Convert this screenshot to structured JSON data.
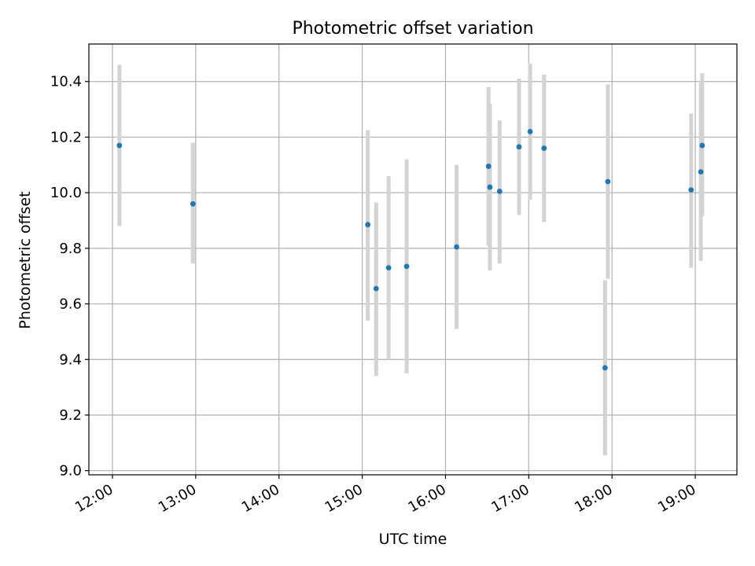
{
  "chart_data": {
    "type": "scatter",
    "title": "Photometric offset variation",
    "xlabel": "UTC time",
    "ylabel": "Photometric offset",
    "xlim": [
      "11:43",
      "19:30"
    ],
    "ylim": [
      8.985,
      10.535
    ],
    "x_ticks": [
      "12:00",
      "13:00",
      "14:00",
      "15:00",
      "16:00",
      "17:00",
      "18:00",
      "19:00"
    ],
    "y_ticks": [
      "9.0",
      "9.2",
      "9.4",
      "9.6",
      "9.8",
      "10.0",
      "10.2",
      "10.4"
    ],
    "grid": true,
    "colors": {
      "point": "#1f77b4",
      "errorbar": "#d3d3d3",
      "grid": "#b0b0b0"
    },
    "points": [
      {
        "x": "12:05",
        "y": 10.17,
        "ylow": 9.88,
        "yhigh": 10.46
      },
      {
        "x": "12:58",
        "y": 9.96,
        "ylow": 9.745,
        "yhigh": 10.18
      },
      {
        "x": "15:04",
        "y": 9.885,
        "ylow": 9.54,
        "yhigh": 10.225
      },
      {
        "x": "15:10",
        "y": 9.655,
        "ylow": 9.34,
        "yhigh": 9.965
      },
      {
        "x": "15:19",
        "y": 9.73,
        "ylow": 9.4,
        "yhigh": 10.06
      },
      {
        "x": "15:32",
        "y": 9.735,
        "ylow": 9.35,
        "yhigh": 10.12
      },
      {
        "x": "16:08",
        "y": 9.805,
        "ylow": 9.51,
        "yhigh": 10.1
      },
      {
        "x": "16:31",
        "y": 10.095,
        "ylow": 9.81,
        "yhigh": 10.38
      },
      {
        "x": "16:32",
        "y": 10.02,
        "ylow": 9.72,
        "yhigh": 10.32
      },
      {
        "x": "16:39",
        "y": 10.005,
        "ylow": 9.745,
        "yhigh": 10.26
      },
      {
        "x": "16:53",
        "y": 10.165,
        "ylow": 9.92,
        "yhigh": 10.41
      },
      {
        "x": "17:01",
        "y": 10.22,
        "ylow": 9.975,
        "yhigh": 10.465
      },
      {
        "x": "17:11",
        "y": 10.16,
        "ylow": 9.895,
        "yhigh": 10.425
      },
      {
        "x": "17:55",
        "y": 9.37,
        "ylow": 9.055,
        "yhigh": 9.685
      },
      {
        "x": "17:57",
        "y": 10.04,
        "ylow": 9.69,
        "yhigh": 10.39
      },
      {
        "x": "18:57",
        "y": 10.01,
        "ylow": 9.73,
        "yhigh": 10.285
      },
      {
        "x": "19:04",
        "y": 10.075,
        "ylow": 9.755,
        "yhigh": 10.395
      },
      {
        "x": "19:05",
        "y": 10.17,
        "ylow": 9.915,
        "yhigh": 10.43
      }
    ]
  }
}
